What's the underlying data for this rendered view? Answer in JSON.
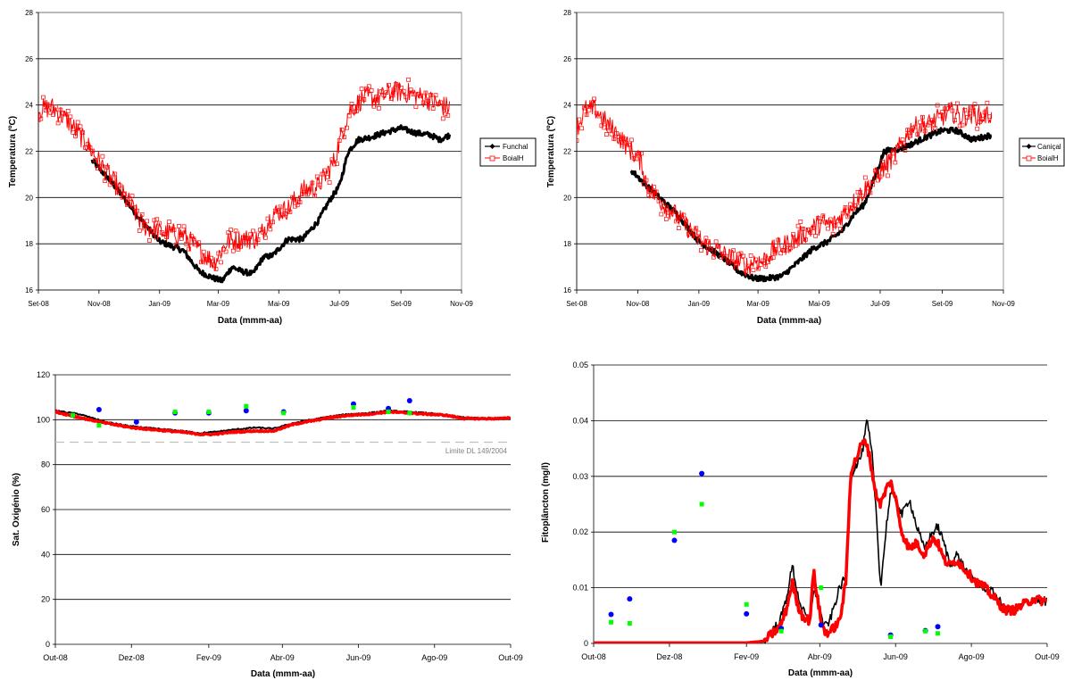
{
  "colors": {
    "black_series": "#000000",
    "red_series": "#ff0000",
    "blue_markers": "#0000ff",
    "green_markers": "#00ff00",
    "grid": "#000000",
    "limit_line": "#c0c0c0",
    "limit_label": "#808080"
  },
  "chart_data": [
    {
      "id": "funchal",
      "type": "line",
      "title": "",
      "xlabel": "Data (mmm-aa)",
      "ylabel": "Temperatura (ºC)",
      "xlim": [
        "2008-09-01",
        "2009-11-01"
      ],
      "ylim": [
        16,
        28
      ],
      "yticks": [
        16,
        18,
        20,
        22,
        24,
        26,
        28
      ],
      "xtick_labels": [
        "Set-08",
        "Nov-08",
        "Jan-09",
        "Mar-09",
        "Mai-09",
        "Jul-09",
        "Set-09",
        "Nov-09"
      ],
      "xtick_dates": [
        "2008-09-01",
        "2008-11-01",
        "2009-01-01",
        "2009-03-01",
        "2009-05-01",
        "2009-07-01",
        "2009-09-01",
        "2009-11-01"
      ],
      "grid": true,
      "legend": "right",
      "series": [
        {
          "name": "Funchal",
          "color": "#000000",
          "marker": "diamond",
          "x": [
            "2008-10-25",
            "2008-11-15",
            "2008-12-10",
            "2009-01-01",
            "2009-01-25",
            "2009-02-10",
            "2009-02-25",
            "2009-03-05",
            "2009-03-15",
            "2009-03-25",
            "2009-04-05",
            "2009-04-15",
            "2009-04-25",
            "2009-05-10",
            "2009-05-25",
            "2009-06-10",
            "2009-06-20",
            "2009-07-01",
            "2009-07-10",
            "2009-07-20",
            "2009-08-01",
            "2009-08-15",
            "2009-09-01",
            "2009-09-15",
            "2009-10-01",
            "2009-10-10",
            "2009-10-20"
          ],
          "y": [
            21.6,
            20.6,
            19.2,
            18.1,
            17.7,
            16.8,
            16.5,
            16.4,
            17.0,
            16.8,
            16.7,
            17.4,
            17.5,
            18.2,
            18.2,
            19.0,
            19.8,
            20.5,
            22.0,
            22.5,
            22.6,
            22.8,
            23.0,
            22.8,
            22.7,
            22.5,
            22.7
          ]
        },
        {
          "name": "BoialH",
          "color": "#ff0000",
          "marker": "square",
          "x": [
            "2008-09-01",
            "2008-09-15",
            "2008-10-01",
            "2008-10-20",
            "2008-11-10",
            "2008-12-01",
            "2008-12-15",
            "2009-01-01",
            "2009-01-25",
            "2009-02-10",
            "2009-02-25",
            "2009-03-10",
            "2009-03-25",
            "2009-04-10",
            "2009-04-25",
            "2009-05-10",
            "2009-05-25",
            "2009-06-10",
            "2009-06-25",
            "2009-07-10",
            "2009-07-25",
            "2009-08-10",
            "2009-08-25",
            "2009-09-10",
            "2009-09-25",
            "2009-10-10",
            "2009-10-20"
          ],
          "y": [
            23.8,
            23.9,
            23.3,
            22.3,
            21.0,
            19.8,
            18.8,
            18.5,
            18.4,
            17.7,
            17.2,
            18.1,
            18.2,
            18.2,
            19.3,
            19.5,
            20.3,
            20.5,
            21.5,
            23.7,
            24.3,
            24.3,
            24.6,
            24.5,
            24.3,
            24.0,
            23.9
          ]
        }
      ]
    },
    {
      "id": "canical",
      "type": "line",
      "title": "",
      "xlabel": "Data (mmm-aa)",
      "ylabel": "Temperatura (ºC)",
      "xlim": [
        "2008-09-01",
        "2009-11-01"
      ],
      "ylim": [
        16,
        28
      ],
      "yticks": [
        16,
        18,
        20,
        22,
        24,
        26,
        28
      ],
      "xtick_labels": [
        "Set-08",
        "Nov-08",
        "Jan-09",
        "Mar-09",
        "Mai-09",
        "Jul-09",
        "Set-09",
        "Nov-09"
      ],
      "xtick_dates": [
        "2008-09-01",
        "2008-11-01",
        "2009-01-01",
        "2009-03-01",
        "2009-05-01",
        "2009-07-01",
        "2009-09-01",
        "2009-11-01"
      ],
      "grid": true,
      "legend": "right",
      "series": [
        {
          "name": "Caniçal",
          "color": "#000000",
          "marker": "diamond",
          "x": [
            "2008-10-25",
            "2008-11-15",
            "2008-12-10",
            "2009-01-01",
            "2009-01-25",
            "2009-02-10",
            "2009-02-25",
            "2009-03-10",
            "2009-03-25",
            "2009-04-10",
            "2009-04-25",
            "2009-05-10",
            "2009-05-25",
            "2009-06-05",
            "2009-06-15",
            "2009-06-25",
            "2009-07-05",
            "2009-07-20",
            "2009-08-01",
            "2009-08-15",
            "2009-09-01",
            "2009-09-15",
            "2009-10-01",
            "2009-10-20"
          ],
          "y": [
            21.2,
            20.3,
            19.3,
            18.1,
            17.4,
            16.8,
            16.5,
            16.5,
            16.6,
            17.2,
            17.8,
            18.1,
            18.6,
            19.3,
            19.7,
            20.8,
            22.0,
            22.1,
            22.3,
            22.6,
            22.9,
            22.9,
            22.5,
            22.7
          ]
        },
        {
          "name": "BoialH",
          "color": "#ff0000",
          "marker": "square",
          "x": [
            "2008-09-01",
            "2008-09-10",
            "2008-09-20",
            "2008-10-01",
            "2008-10-10",
            "2008-10-20",
            "2008-11-05",
            "2008-11-10",
            "2008-11-20",
            "2008-12-10",
            "2009-01-05",
            "2009-02-10",
            "2009-02-20",
            "2009-02-25",
            "2009-03-05",
            "2009-03-15",
            "2009-03-25",
            "2009-04-05",
            "2009-04-15",
            "2009-04-25",
            "2009-05-05",
            "2009-05-15",
            "2009-06-15",
            "2009-07-15",
            "2009-08-01",
            "2009-08-10",
            "2009-08-20",
            "2009-09-01",
            "2009-09-10",
            "2009-09-20",
            "2009-10-01",
            "2009-10-10",
            "2009-10-20"
          ],
          "y": [
            23.0,
            23.8,
            23.8,
            23.2,
            22.8,
            22.3,
            21.5,
            20.5,
            20.0,
            19.2,
            18.0,
            17.2,
            17.0,
            17.3,
            17.2,
            17.7,
            17.9,
            18.1,
            18.4,
            18.7,
            18.9,
            18.8,
            20.3,
            21.8,
            23.0,
            23.1,
            23.2,
            23.5,
            23.7,
            23.5,
            23.6,
            23.5,
            23.6
          ]
        }
      ]
    },
    {
      "id": "oxigenio",
      "type": "line",
      "title": "",
      "xlabel": "Data (mmm-aa)",
      "ylabel": "Sat. Oxigénio (%)",
      "xlim": [
        "2008-10-01",
        "2009-10-01"
      ],
      "ylim": [
        0,
        120
      ],
      "yticks": [
        0,
        20,
        40,
        60,
        80,
        100,
        120
      ],
      "xtick_labels": [
        "Out-08",
        "Dez-08",
        "Fev-09",
        "Abr-09",
        "Jun-09",
        "Ago-09",
        "Out-09"
      ],
      "xtick_dates": [
        "2008-10-01",
        "2008-12-01",
        "2009-02-01",
        "2009-04-01",
        "2009-06-01",
        "2009-08-01",
        "2009-10-01"
      ],
      "grid": true,
      "limit_value": 90,
      "limit_label": "Limite DL 149/2004",
      "series": [
        {
          "color": "#000000",
          "x": [
            "2008-10-01",
            "2008-10-20",
            "2008-11-10",
            "2008-12-01",
            "2008-12-20",
            "2009-01-10",
            "2009-01-25",
            "2009-02-05",
            "2009-02-20",
            "2009-03-10",
            "2009-03-25",
            "2009-04-10",
            "2009-04-25",
            "2009-05-10",
            "2009-05-25",
            "2009-06-10",
            "2009-06-25",
            "2009-07-10",
            "2009-07-25",
            "2009-08-10",
            "2009-08-25",
            "2009-09-10",
            "2009-09-25",
            "2009-10-01"
          ],
          "y": [
            104,
            102.5,
            99,
            97,
            96,
            95,
            94,
            94.5,
            95.5,
            96.5,
            96,
            98.5,
            100,
            101.5,
            102.5,
            103,
            104,
            103.5,
            103,
            102,
            101,
            100.5,
            100.5,
            101
          ]
        },
        {
          "color": "#ff0000",
          "x": [
            "2008-10-01",
            "2008-10-20",
            "2008-11-10",
            "2008-12-01",
            "2008-12-20",
            "2009-01-10",
            "2009-01-25",
            "2009-02-05",
            "2009-02-20",
            "2009-03-10",
            "2009-03-25",
            "2009-04-10",
            "2009-04-25",
            "2009-05-10",
            "2009-05-25",
            "2009-06-10",
            "2009-06-25",
            "2009-07-10",
            "2009-07-25",
            "2009-08-10",
            "2009-08-25",
            "2009-09-10",
            "2009-09-25",
            "2009-10-01"
          ],
          "y": [
            103.5,
            101,
            98.5,
            96.5,
            95.5,
            94.5,
            93.5,
            93.5,
            94.5,
            95,
            95,
            98,
            99.5,
            101,
            102,
            102.5,
            103.5,
            103,
            102.5,
            102,
            100.5,
            100.5,
            100.5,
            101
          ]
        },
        {
          "color": "#0000ff",
          "marker": "circle",
          "x": [
            "2008-11-05",
            "2008-12-05",
            "2009-01-05",
            "2009-02-01",
            "2009-03-03",
            "2009-04-02",
            "2009-05-28",
            "2009-06-25",
            "2009-07-12"
          ],
          "y": [
            104.5,
            99,
            103,
            103,
            104,
            103.5,
            107,
            105,
            108.5
          ]
        },
        {
          "color": "#00ff00",
          "marker": "square",
          "x": [
            "2008-10-15",
            "2008-11-05",
            "2009-01-05",
            "2009-02-01",
            "2009-03-03",
            "2009-04-02",
            "2009-05-28",
            "2009-06-25",
            "2009-07-12"
          ],
          "y": [
            102,
            97.5,
            103.5,
            103.5,
            106,
            103,
            105.5,
            103.5,
            103
          ]
        }
      ]
    },
    {
      "id": "fitoplancton",
      "type": "line",
      "title": "",
      "xlabel": "Data (mmm-aa)",
      "ylabel": "Fitoplâncton (mg/l)",
      "xlim": [
        "2008-10-01",
        "2009-10-01"
      ],
      "ylim": [
        0,
        0.05
      ],
      "yticks": [
        0,
        0.01,
        0.02,
        0.03,
        0.04,
        0.05
      ],
      "ytick_labels": [
        "0",
        "0.01",
        "0.02",
        "0.03",
        "0.04",
        "0.05"
      ],
      "xtick_labels": [
        "Out-08",
        "Dez-08",
        "Fev-09",
        "Abr-09",
        "Jun-09",
        "Ago-09",
        "Out-09"
      ],
      "xtick_dates": [
        "2008-10-01",
        "2008-12-01",
        "2009-02-01",
        "2009-04-01",
        "2009-06-01",
        "2009-08-01",
        "2009-10-01"
      ],
      "grid": true,
      "series": [
        {
          "color": "#000000",
          "x": [
            "2008-10-01",
            "2009-02-01",
            "2009-02-15",
            "2009-02-28",
            "2009-03-05",
            "2009-03-10",
            "2009-03-14",
            "2009-03-18",
            "2009-03-24",
            "2009-03-27",
            "2009-04-02",
            "2009-04-05",
            "2009-04-09",
            "2009-04-13",
            "2009-04-17",
            "2009-04-22",
            "2009-04-26",
            "2009-04-30",
            "2009-05-05",
            "2009-05-09",
            "2009-05-13",
            "2009-05-16",
            "2009-05-20",
            "2009-05-25",
            "2009-05-28",
            "2009-06-01",
            "2009-06-06",
            "2009-06-12",
            "2009-06-18",
            "2009-06-24",
            "2009-07-01",
            "2009-07-05",
            "2009-07-10",
            "2009-07-15",
            "2009-07-20",
            "2009-07-28",
            "2009-08-05",
            "2009-08-12",
            "2009-08-20",
            "2009-08-28",
            "2009-09-05",
            "2009-09-12",
            "2009-09-20",
            "2009-10-01"
          ],
          "y": [
            0.0001,
            0.0001,
            0.0005,
            0.004,
            0.008,
            0.014,
            0.009,
            0.006,
            0.004,
            0.01,
            0.005,
            0.003,
            0.004,
            0.007,
            0.01,
            0.012,
            0.03,
            0.032,
            0.034,
            0.04,
            0.034,
            0.025,
            0.01,
            0.022,
            0.027,
            0.026,
            0.023,
            0.026,
            0.021,
            0.017,
            0.02,
            0.021,
            0.018,
            0.014,
            0.016,
            0.013,
            0.011,
            0.01,
            0.009,
            0.006,
            0.006,
            0.007,
            0.008,
            0.0075
          ]
        },
        {
          "color": "#ff0000",
          "x": [
            "2008-10-01",
            "2009-02-01",
            "2009-02-15",
            "2009-02-28",
            "2009-03-05",
            "2009-03-10",
            "2009-03-14",
            "2009-03-18",
            "2009-03-24",
            "2009-03-27",
            "2009-04-02",
            "2009-04-05",
            "2009-04-09",
            "2009-04-13",
            "2009-04-17",
            "2009-04-22",
            "2009-04-26",
            "2009-04-30",
            "2009-05-05",
            "2009-05-09",
            "2009-05-13",
            "2009-05-16",
            "2009-05-20",
            "2009-05-25",
            "2009-05-28",
            "2009-06-01",
            "2009-06-06",
            "2009-06-12",
            "2009-06-18",
            "2009-06-24",
            "2009-07-01",
            "2009-07-05",
            "2009-07-10",
            "2009-07-15",
            "2009-07-20",
            "2009-07-28",
            "2009-08-05",
            "2009-08-12",
            "2009-08-20",
            "2009-08-28",
            "2009-09-05",
            "2009-09-12",
            "2009-09-20",
            "2009-10-01"
          ],
          "y": [
            0.0001,
            0.0001,
            0.0004,
            0.003,
            0.006,
            0.011,
            0.007,
            0.005,
            0.004,
            0.013,
            0.004,
            0.002,
            0.002,
            0.003,
            0.004,
            0.011,
            0.031,
            0.033,
            0.036,
            0.036,
            0.031,
            0.027,
            0.025,
            0.028,
            0.029,
            0.026,
            0.02,
            0.017,
            0.018,
            0.016,
            0.019,
            0.018,
            0.015,
            0.014,
            0.015,
            0.013,
            0.011,
            0.01,
            0.008,
            0.006,
            0.006,
            0.007,
            0.008,
            0.0075
          ]
        },
        {
          "color": "#0000ff",
          "marker": "circle",
          "x": [
            "2008-10-15",
            "2008-10-30",
            "2008-12-05",
            "2008-12-27",
            "2009-02-01",
            "2009-03-01",
            "2009-04-02",
            "2009-05-28",
            "2009-06-25",
            "2009-07-05"
          ],
          "y": [
            0.0052,
            0.008,
            0.0185,
            0.0305,
            0.0053,
            0.0027,
            0.0033,
            0.0015,
            0.0023,
            0.003
          ]
        },
        {
          "color": "#00ff00",
          "marker": "square",
          "x": [
            "2008-10-15",
            "2008-10-30",
            "2008-12-05",
            "2008-12-27",
            "2009-02-01",
            "2009-03-01",
            "2009-04-02",
            "2009-05-28",
            "2009-06-25",
            "2009-07-05"
          ],
          "y": [
            0.0038,
            0.0036,
            0.02,
            0.025,
            0.007,
            0.0022,
            0.01,
            0.0012,
            0.0022,
            0.0018
          ]
        }
      ]
    }
  ]
}
